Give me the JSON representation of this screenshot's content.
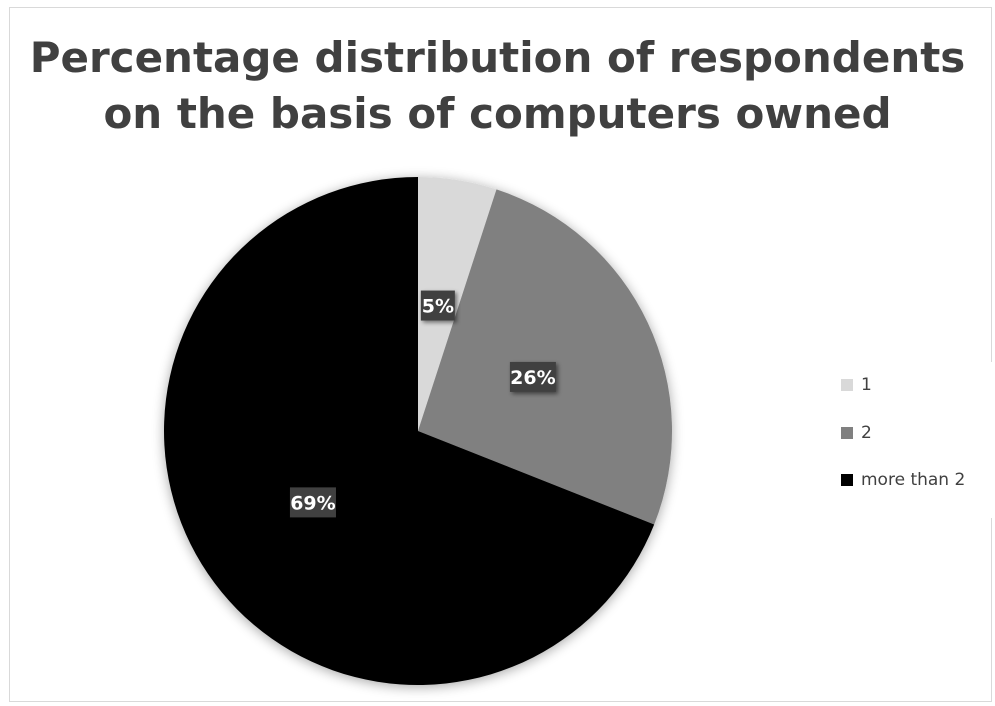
{
  "chart_data": {
    "type": "pie",
    "title": "Percentage distribution of respondents on the basis of computers owned",
    "title_lines": [
      "Percentage distribution of respondents",
      "on the basis of computers owned"
    ],
    "categories": [
      "1",
      "2",
      "more than 2"
    ],
    "values": [
      5,
      26,
      69
    ],
    "data_labels": [
      "5%",
      "26%",
      "69%"
    ],
    "colors": [
      "#d9d9d9",
      "#808080",
      "#000000"
    ],
    "legend_position": "right",
    "start_angle": "12 o'clock",
    "direction": "clockwise"
  }
}
